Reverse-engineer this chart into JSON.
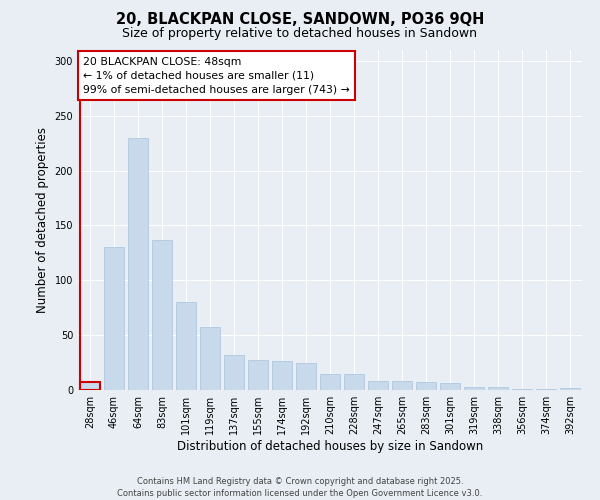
{
  "title": "20, BLACKPAN CLOSE, SANDOWN, PO36 9QH",
  "subtitle": "Size of property relative to detached houses in Sandown",
  "xlabel": "Distribution of detached houses by size in Sandown",
  "ylabel": "Number of detached properties",
  "categories": [
    "28sqm",
    "46sqm",
    "64sqm",
    "83sqm",
    "101sqm",
    "119sqm",
    "137sqm",
    "155sqm",
    "174sqm",
    "192sqm",
    "210sqm",
    "228sqm",
    "247sqm",
    "265sqm",
    "283sqm",
    "301sqm",
    "319sqm",
    "338sqm",
    "356sqm",
    "374sqm",
    "392sqm"
  ],
  "values": [
    7,
    130,
    230,
    137,
    80,
    57,
    32,
    27,
    26,
    25,
    15,
    15,
    8,
    8,
    7,
    6,
    3,
    3,
    1,
    1,
    2
  ],
  "bar_color": "#c9d9ec",
  "bar_edge_color": "#a8c4dc",
  "highlight_edge_color": "#cc0000",
  "annotation_text": "20 BLACKPAN CLOSE: 48sqm\n← 1% of detached houses are smaller (11)\n99% of semi-detached houses are larger (743) →",
  "annotation_box_facecolor": "white",
  "annotation_box_edgecolor": "#cc0000",
  "ylim": [
    0,
    310
  ],
  "yticks": [
    0,
    50,
    100,
    150,
    200,
    250,
    300
  ],
  "bg_color": "#e8eef4",
  "grid_color": "#ffffff",
  "footer": "Contains HM Land Registry data © Crown copyright and database right 2025.\nContains public sector information licensed under the Open Government Licence v3.0."
}
